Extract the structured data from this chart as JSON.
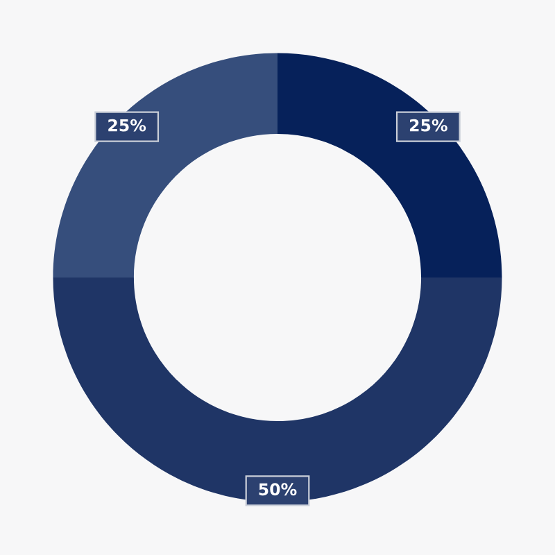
{
  "chart_data": {
    "type": "donut",
    "categories": [
      null,
      null,
      null
    ],
    "values": [
      25,
      50,
      25
    ],
    "colors": [
      "#06215a",
      "#1f3566",
      "#364e7c"
    ],
    "value_labels": [
      "25%",
      "50%",
      "25%"
    ],
    "legend": false
  }
}
